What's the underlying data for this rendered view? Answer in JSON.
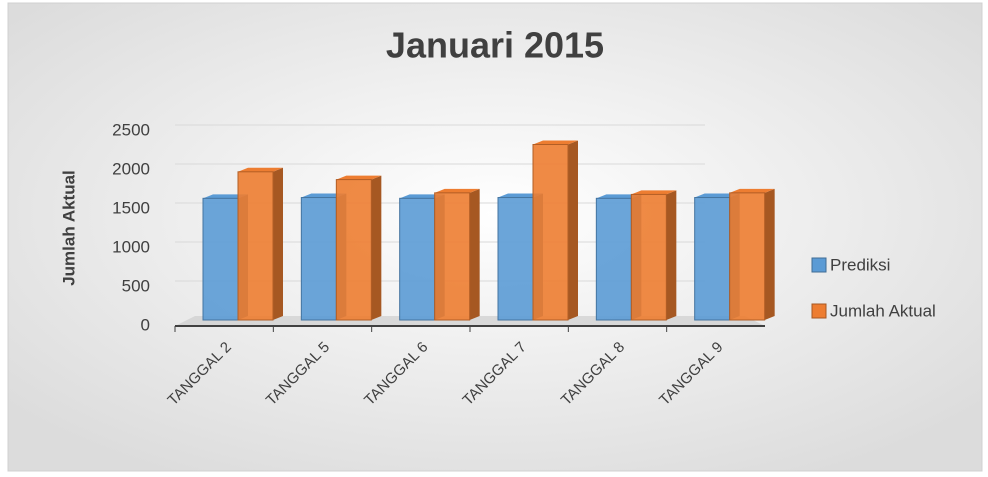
{
  "chart_data": {
    "type": "bar",
    "title": "Januari 2015",
    "y_label": "Jumlah Aktual",
    "categories": [
      "TANGGAL 2",
      "TANGGAL 5",
      "TANGGAL 6",
      "TANGGAL 7",
      "TANGGAL 8",
      "TANGGAL 9"
    ],
    "series": [
      {
        "name": "Prediksi",
        "color": "#5b9bd5",
        "values": [
          1560,
          1570,
          1560,
          1570,
          1560,
          1570
        ]
      },
      {
        "name": "Jumlah Aktual",
        "color": "#ed7d31",
        "values": [
          1900,
          1800,
          1630,
          2250,
          1610,
          1630
        ]
      }
    ],
    "ylim": [
      0,
      2500
    ],
    "yticks": [
      0,
      500,
      1000,
      1500,
      2000,
      2500
    ],
    "grid": true,
    "legend": "right"
  }
}
